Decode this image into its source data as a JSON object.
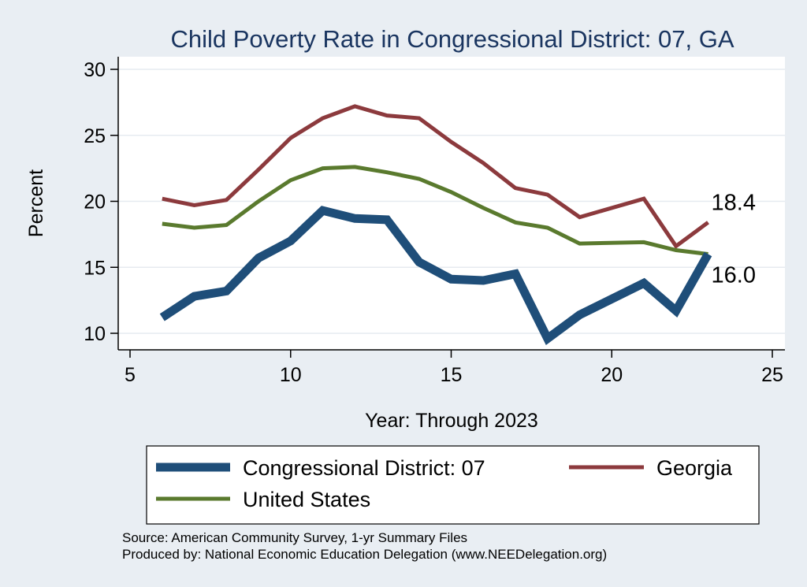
{
  "chart_data": {
    "type": "line",
    "title": "Child Poverty Rate in Congressional District:  07, GA",
    "xlabel": "Year: Through 2023",
    "ylabel": "Percent",
    "xlim": [
      5,
      25
    ],
    "ylim": [
      10,
      30
    ],
    "xticks": [
      5,
      10,
      15,
      20,
      25
    ],
    "yticks": [
      10,
      15,
      20,
      25,
      30
    ],
    "grid": true,
    "legend_position": "bottom",
    "series": [
      {
        "name": "Congressional District:  07",
        "color": "#1f4e79",
        "x": [
          6,
          7,
          8,
          9,
          10,
          11,
          12,
          13,
          14,
          15,
          16,
          17,
          18,
          19,
          21,
          22,
          23
        ],
        "y": [
          11.2,
          12.8,
          13.2,
          15.7,
          17.0,
          19.3,
          18.7,
          18.6,
          15.4,
          14.1,
          14.0,
          14.5,
          9.6,
          11.4,
          13.8,
          11.7,
          16.0
        ]
      },
      {
        "name": "Georgia",
        "color": "#8c3a3d",
        "x": [
          6,
          7,
          8,
          9,
          10,
          11,
          12,
          13,
          14,
          15,
          16,
          17,
          18,
          19,
          21,
          22,
          23
        ],
        "y": [
          20.2,
          19.7,
          20.1,
          22.4,
          24.8,
          26.3,
          27.2,
          26.5,
          26.3,
          24.5,
          22.9,
          21.0,
          20.5,
          18.8,
          20.2,
          16.6,
          18.4
        ]
      },
      {
        "name": "United States",
        "color": "#5a7a2e",
        "x": [
          6,
          7,
          8,
          9,
          10,
          11,
          12,
          13,
          14,
          15,
          16,
          17,
          18,
          19,
          21,
          22,
          23
        ],
        "y": [
          18.3,
          18.0,
          18.2,
          20.0,
          21.6,
          22.5,
          22.6,
          22.2,
          21.7,
          20.7,
          19.5,
          18.4,
          18.0,
          16.8,
          16.9,
          16.3,
          16.0
        ]
      }
    ],
    "annotations": [
      {
        "text": "18.4",
        "x": 23,
        "y": 18.4
      },
      {
        "text": "16.0",
        "x": 23,
        "y": 16.0
      }
    ]
  },
  "notes": {
    "source": "Source: American Community Survey, 1-yr Summary Files",
    "producer": "Produced by: National Economic Education Delegation (www.NEEDelegation.org)"
  }
}
